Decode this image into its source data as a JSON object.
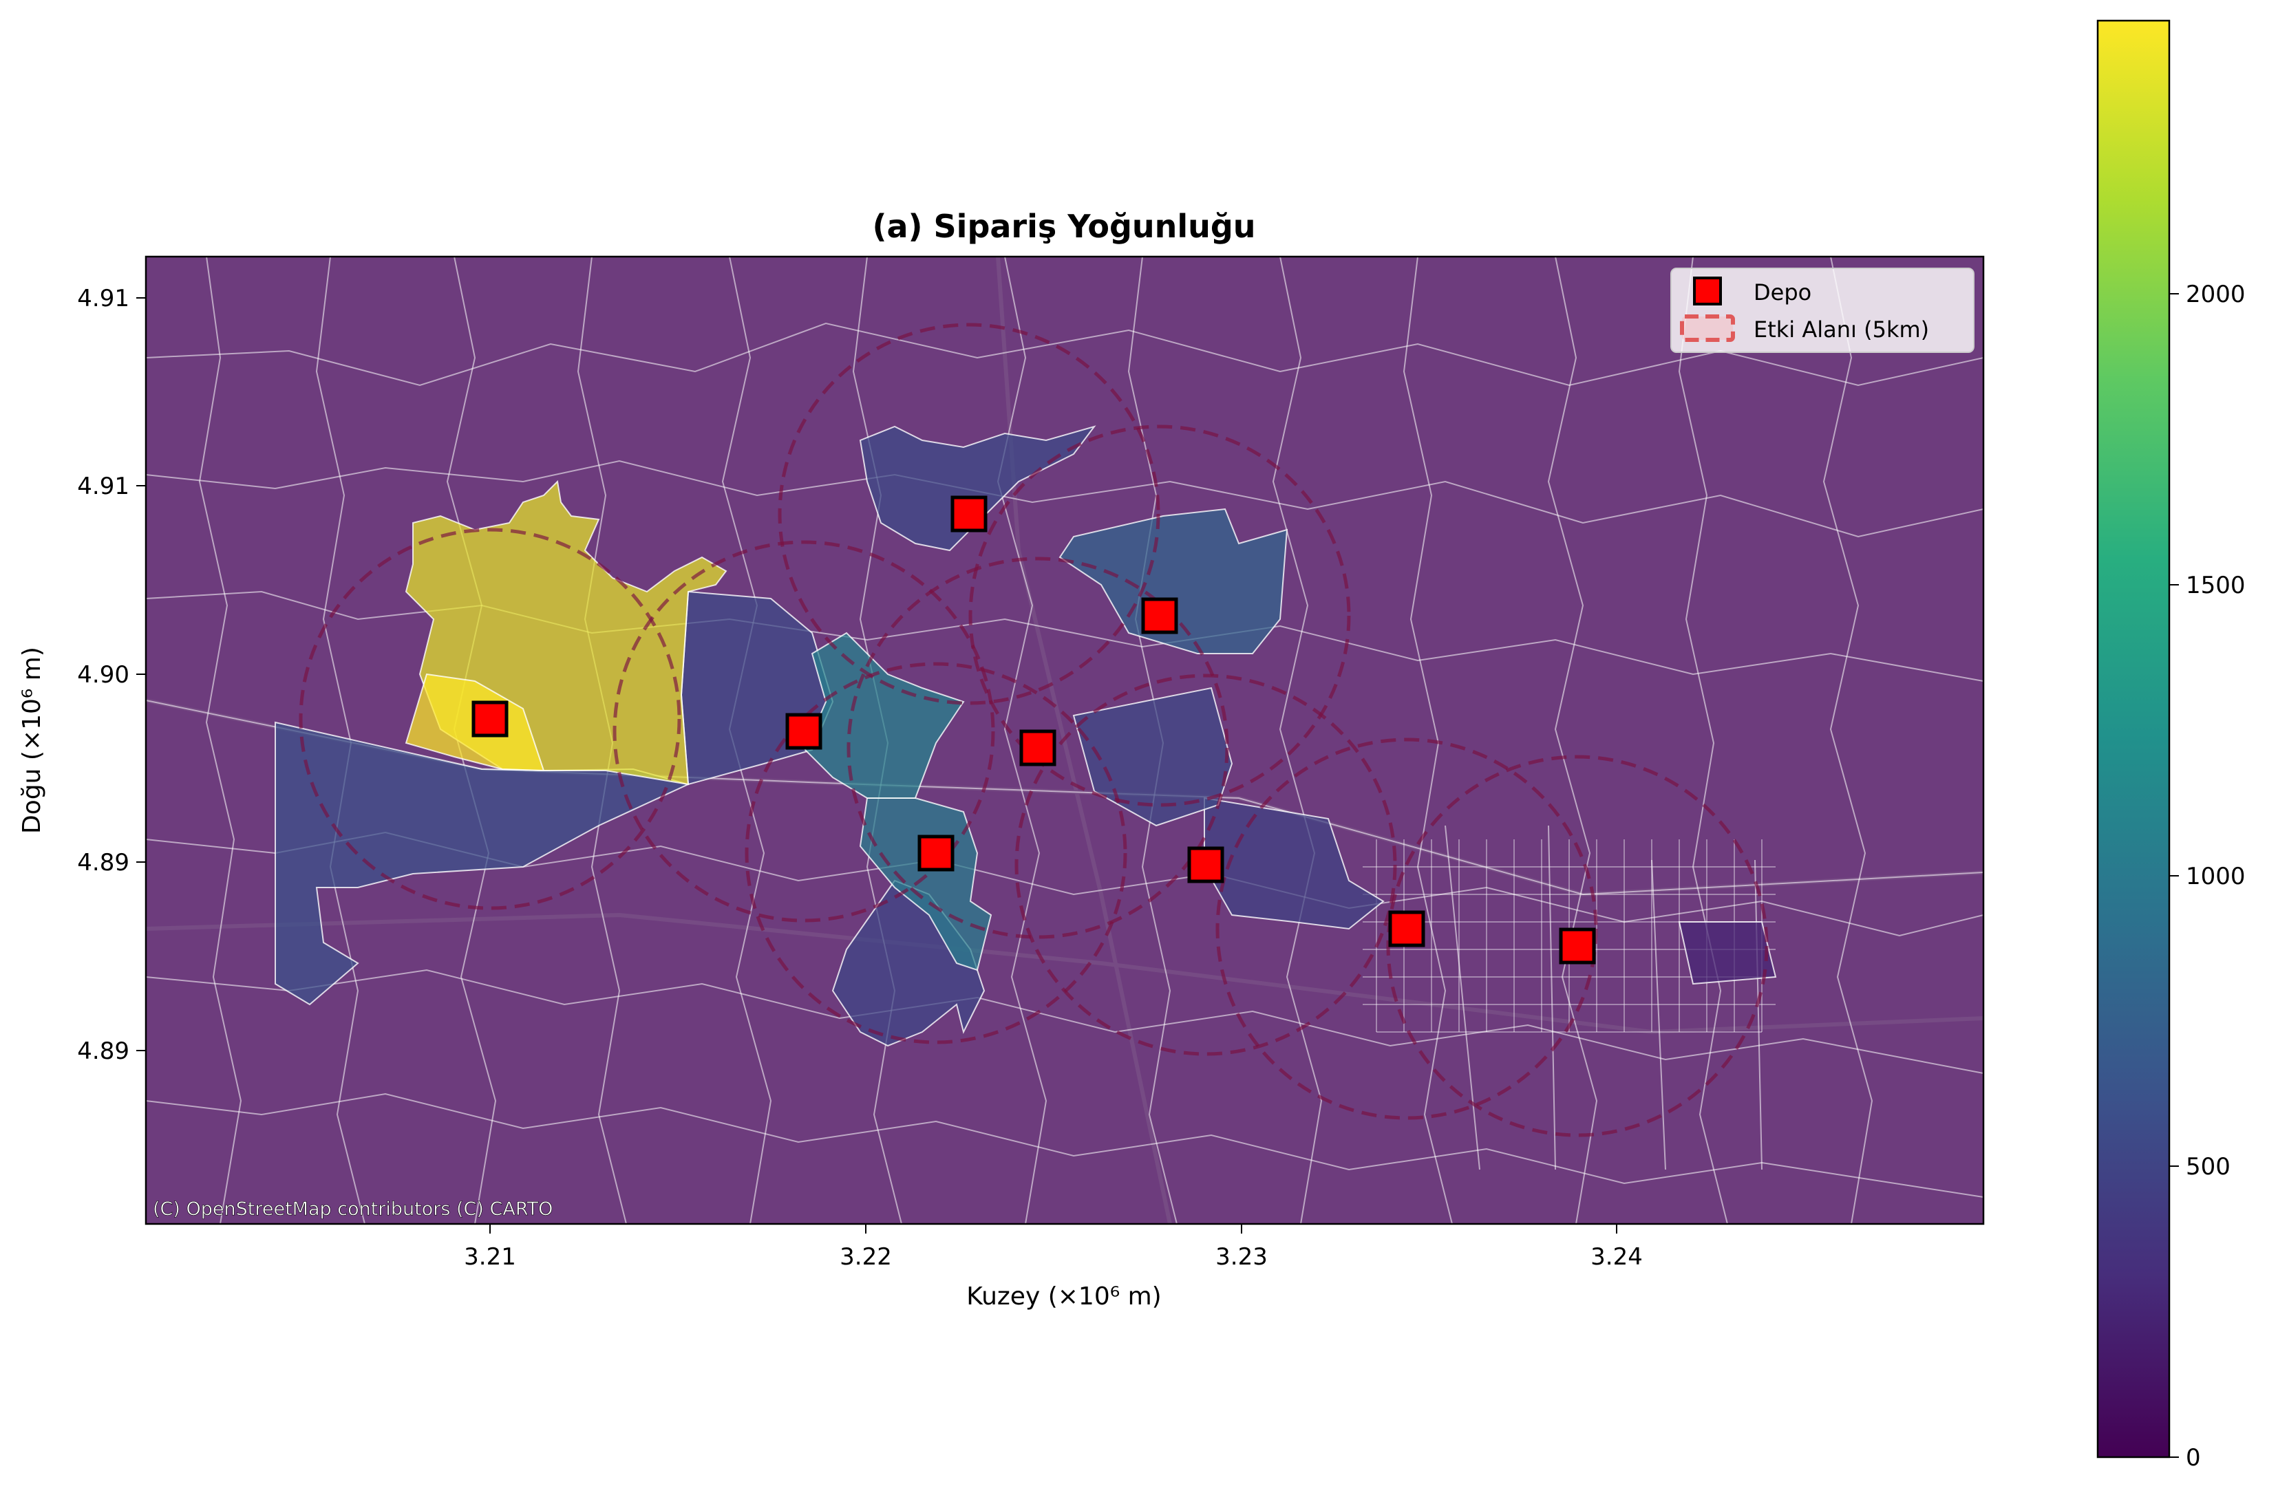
{
  "title": "(a) Sipariş Yoğunluğu",
  "x_axis": {
    "label": "Kuzey (×10⁶ m)",
    "ticks": [
      "3.21",
      "3.22",
      "3.23",
      "3.24"
    ]
  },
  "y_axis": {
    "label": "Doğu (×10⁶ m)",
    "ticks": [
      "4.91",
      "4.91",
      "4.90",
      "4.89",
      "4.89"
    ]
  },
  "legend": {
    "position": "top-right",
    "items": [
      {
        "label": "Depo",
        "marker": "red-square"
      },
      {
        "label": "Etki Alanı (5km)",
        "marker": "dashed-circle"
      }
    ]
  },
  "attribution": "(C) OpenStreetMap contributors (C) CARTO",
  "colorbar": {
    "colormap": "viridis",
    "range": [
      0,
      2470
    ],
    "ticks": [
      "0",
      "500",
      "1000",
      "1500",
      "2000"
    ]
  },
  "colors": {
    "background_district": "#6d3c7d",
    "depot_fill": "#ff0000",
    "influence_circle": "#7a1040",
    "boundary": "#ffffff"
  },
  "chart_data": {
    "type": "choropleth-map",
    "title": "(a) Sipariş Yoğunluğu",
    "xlabel": "Kuzey (×10⁶ m)",
    "ylabel": "Doğu (×10⁶ m)",
    "xlim": [
      3.2009,
      3.2497
    ],
    "ylim": [
      4.8818,
      4.9075
    ],
    "depots": [
      {
        "x": 3.2102,
        "y": 4.8988
      },
      {
        "x": 3.2185,
        "y": 4.8984
      },
      {
        "x": 3.2231,
        "y": 4.9047
      },
      {
        "x": 3.2281,
        "y": 4.902
      },
      {
        "x": 3.225,
        "y": 4.898
      },
      {
        "x": 3.2222,
        "y": 4.8936
      },
      {
        "x": 3.2293,
        "y": 4.8933
      },
      {
        "x": 3.2345,
        "y": 4.8915
      },
      {
        "x": 3.2391,
        "y": 4.8911
      }
    ],
    "influence_radius_km": 5,
    "density_regions": [
      {
        "name": "west-large",
        "value": 2380
      },
      {
        "name": "west-core",
        "value": 2470
      },
      {
        "name": "west-south-strip",
        "value": 620
      },
      {
        "name": "centre-west",
        "value": 560
      },
      {
        "name": "centre",
        "value": 1100
      },
      {
        "name": "centre-south",
        "value": 1050
      },
      {
        "name": "south-lobe",
        "value": 520
      },
      {
        "name": "north-area",
        "value": 560
      },
      {
        "name": "north-east-area",
        "value": 800
      },
      {
        "name": "east-mid",
        "value": 540
      },
      {
        "name": "east",
        "value": 480
      },
      {
        "name": "city-east",
        "value": 250
      }
    ],
    "colorbar_range": [
      0,
      2470
    ]
  }
}
